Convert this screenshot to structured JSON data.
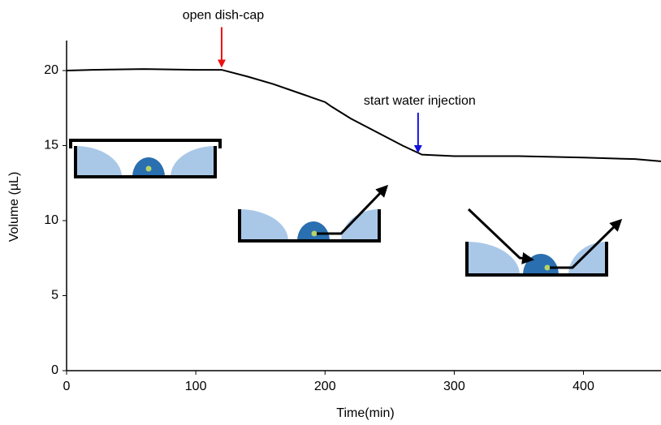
{
  "chart_data": {
    "type": "line",
    "x_label": "Time(min)",
    "y_label": "Volume (µL)",
    "x": [
      0,
      20,
      60,
      100,
      120,
      140,
      160,
      180,
      200,
      205,
      220,
      240,
      260,
      275,
      300,
      350,
      400,
      440,
      460
    ],
    "values": [
      20.0,
      20.05,
      20.1,
      20.05,
      20.05,
      19.6,
      19.1,
      18.5,
      17.9,
      17.6,
      16.8,
      15.9,
      15.0,
      14.4,
      14.3,
      14.3,
      14.2,
      14.1,
      13.95
    ],
    "color": "#000000",
    "xlim": [
      0,
      460
    ],
    "ylim": [
      0,
      22
    ],
    "xticks": [
      0,
      100,
      200,
      300,
      400
    ],
    "yticks": [
      0,
      5,
      10,
      15,
      20
    ],
    "annotations": [
      {
        "text": "open dish-cap",
        "color": "#ee1111",
        "x": 120,
        "y": 20.3
      },
      {
        "text": "start water injection",
        "color": "#1111dd",
        "x": 272,
        "y": 14.6
      }
    ]
  }
}
